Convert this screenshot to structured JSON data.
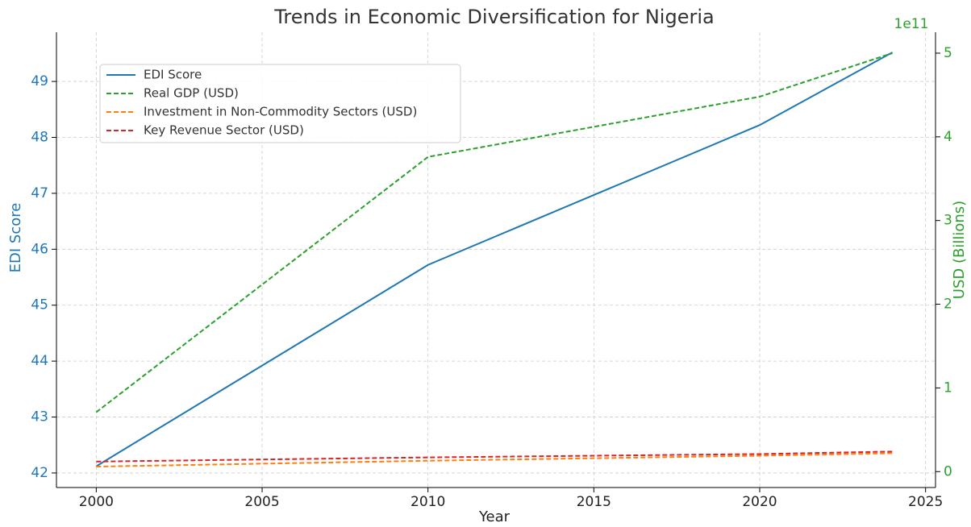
{
  "chart_data": {
    "type": "line",
    "title": "Trends in Economic Diversification for Nigeria",
    "xlabel": "Year",
    "ylabel": "EDI Score",
    "y2label": "USD (Billions)",
    "y2_offset_label": "1e11",
    "x": [
      2000,
      2010,
      2020,
      2024
    ],
    "xlim": [
      1998.8,
      2025.3
    ],
    "xticks": [
      2000,
      2005,
      2010,
      2015,
      2020,
      2025
    ],
    "ylim": [
      41.74,
      49.88
    ],
    "yticks": [
      42,
      43,
      44,
      45,
      46,
      47,
      48,
      49
    ],
    "y2lim": [
      -0.19,
      5.25
    ],
    "y2ticks": [
      0,
      1,
      2,
      3,
      4,
      5
    ],
    "ycolor": "#1f77b4",
    "y2color": "#2ca02c",
    "grid": true,
    "legend": "upper left",
    "series": [
      {
        "name": "EDI Score",
        "color": "#1f77b4",
        "dashed": false,
        "axis": "y",
        "values": [
          42.12,
          45.72,
          48.22,
          49.52
        ]
      },
      {
        "name": "Real GDP (USD)",
        "color": "#2ca02c",
        "dashed": true,
        "axis": "y2",
        "values": [
          0.71,
          3.76,
          4.48,
          5.0
        ]
      },
      {
        "name": "Investment in Non-Commodity Sectors (USD)",
        "color": "#ff7f0e",
        "dashed": true,
        "axis": "y2",
        "values": [
          0.06,
          0.13,
          0.19,
          0.22
        ]
      },
      {
        "name": "Key Revenue Sector (USD)",
        "color": "#d62728",
        "dashed": true,
        "axis": "y2",
        "values": [
          0.12,
          0.17,
          0.21,
          0.24
        ]
      }
    ]
  }
}
